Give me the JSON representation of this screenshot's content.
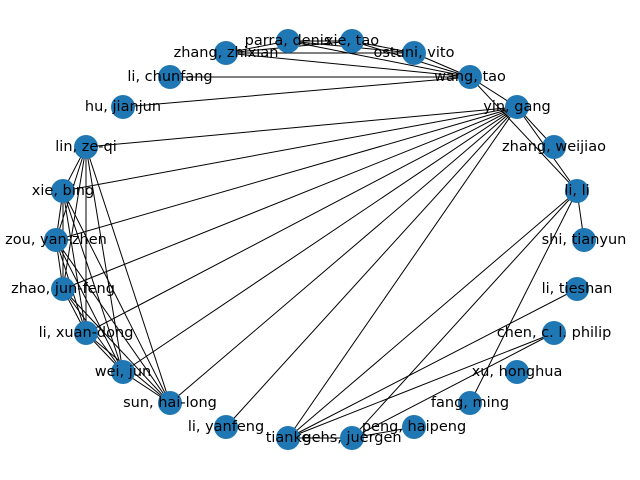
{
  "graph": {
    "node_color": "#1f77b4",
    "edge_color": "#000000",
    "nodes": [
      {
        "id": "wang",
        "label": "wang, tao"
      },
      {
        "id": "ostuni",
        "label": "ostuni, vito"
      },
      {
        "id": "xie_tao",
        "label": "xie, tao"
      },
      {
        "id": "parra",
        "label": "parra, denis"
      },
      {
        "id": "zhang_zx",
        "label": "zhang, zhixian"
      },
      {
        "id": "li_cf",
        "label": "li, chunfang"
      },
      {
        "id": "hu",
        "label": "hu, jianjun"
      },
      {
        "id": "lin",
        "label": "lin, ze-qi"
      },
      {
        "id": "xie_bing",
        "label": "xie, bing"
      },
      {
        "id": "zou",
        "label": "zou, yan-zhen"
      },
      {
        "id": "zhao",
        "label": "zhao, jun-feng"
      },
      {
        "id": "li_xd",
        "label": "li, xuan-dong"
      },
      {
        "id": "wei",
        "label": "wei, jun"
      },
      {
        "id": "sun",
        "label": "sun, hai-long"
      },
      {
        "id": "li_yf",
        "label": "li, yanfeng"
      },
      {
        "id": "tianke",
        "label": "tianke"
      },
      {
        "id": "gehs",
        "label": "gehs, juergen"
      },
      {
        "id": "peng",
        "label": "peng, haipeng"
      },
      {
        "id": "fang",
        "label": "fang, ming"
      },
      {
        "id": "xu",
        "label": "xu, honghua"
      },
      {
        "id": "chen",
        "label": "chen, c. l. philip"
      },
      {
        "id": "li_ts",
        "label": "li, tieshan"
      },
      {
        "id": "shi",
        "label": "shi, tianyun"
      },
      {
        "id": "li_li",
        "label": "li, li"
      },
      {
        "id": "zhang_wj",
        "label": "zhang, weijiao"
      },
      {
        "id": "yin",
        "label": "yin, gang"
      }
    ],
    "edges": [
      [
        "wang",
        "ostuni"
      ],
      [
        "wang",
        "xie_tao"
      ],
      [
        "wang",
        "parra"
      ],
      [
        "wang",
        "zhang_zx"
      ],
      [
        "wang",
        "li_cf"
      ],
      [
        "wang",
        "hu"
      ],
      [
        "wang",
        "yin"
      ],
      [
        "wang",
        "li_li"
      ],
      [
        "ostuni",
        "parra"
      ],
      [
        "ostuni",
        "xie_tao"
      ],
      [
        "ostuni",
        "zhang_zx"
      ],
      [
        "xie_tao",
        "parra"
      ],
      [
        "xie_tao",
        "zhang_zx"
      ],
      [
        "parra",
        "zhang_zx"
      ],
      [
        "yin",
        "li_li"
      ],
      [
        "yin",
        "zhang_wj"
      ],
      [
        "yin",
        "lin"
      ],
      [
        "yin",
        "xie_bing"
      ],
      [
        "yin",
        "zou"
      ],
      [
        "yin",
        "zhao"
      ],
      [
        "yin",
        "li_xd"
      ],
      [
        "yin",
        "wei"
      ],
      [
        "yin",
        "sun"
      ],
      [
        "yin",
        "li_yf"
      ],
      [
        "yin",
        "tianke"
      ],
      [
        "lin",
        "xie_bing"
      ],
      [
        "lin",
        "zou"
      ],
      [
        "lin",
        "zhao"
      ],
      [
        "lin",
        "li_xd"
      ],
      [
        "lin",
        "wei"
      ],
      [
        "lin",
        "sun"
      ],
      [
        "xie_bing",
        "zou"
      ],
      [
        "xie_bing",
        "zhao"
      ],
      [
        "xie_bing",
        "li_xd"
      ],
      [
        "xie_bing",
        "wei"
      ],
      [
        "xie_bing",
        "sun"
      ],
      [
        "zou",
        "zhao"
      ],
      [
        "zou",
        "li_xd"
      ],
      [
        "zou",
        "wei"
      ],
      [
        "zou",
        "sun"
      ],
      [
        "zhao",
        "li_xd"
      ],
      [
        "zhao",
        "wei"
      ],
      [
        "zhao",
        "sun"
      ],
      [
        "li_xd",
        "wei"
      ],
      [
        "li_xd",
        "sun"
      ],
      [
        "wei",
        "sun"
      ],
      [
        "li_li",
        "shi"
      ],
      [
        "li_li",
        "fang"
      ],
      [
        "li_li",
        "tianke"
      ],
      [
        "li_li",
        "gehs"
      ],
      [
        "tianke",
        "gehs"
      ],
      [
        "tianke",
        "li_ts"
      ],
      [
        "tianke",
        "chen"
      ],
      [
        "gehs",
        "peng"
      ],
      [
        "gehs",
        "chen"
      ]
    ]
  }
}
